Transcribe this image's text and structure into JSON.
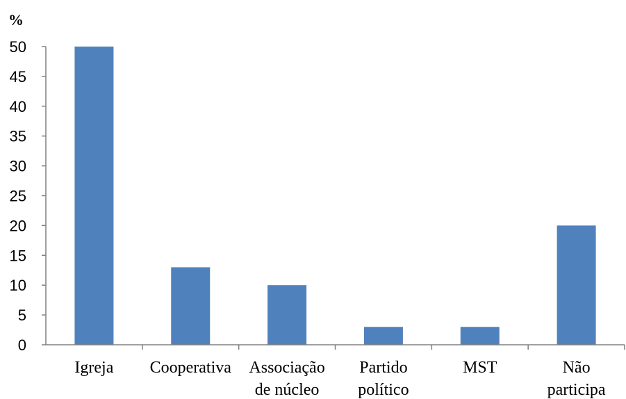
{
  "chart_data": {
    "type": "bar",
    "ylabel": "%",
    "categories": [
      [
        "Igreja"
      ],
      [
        "Cooperativa"
      ],
      [
        "Associação",
        "de núcleo"
      ],
      [
        "Partido",
        "político"
      ],
      [
        "MST"
      ],
      [
        "Não",
        "participa"
      ]
    ],
    "values": [
      50,
      13,
      10,
      3,
      3,
      20
    ],
    "ylim": [
      0,
      50
    ],
    "yticks": [
      0,
      5,
      10,
      15,
      20,
      25,
      30,
      35,
      40,
      45,
      50
    ],
    "grid": false,
    "bar_color": "#4F81BD",
    "axis_color": "#808080"
  }
}
